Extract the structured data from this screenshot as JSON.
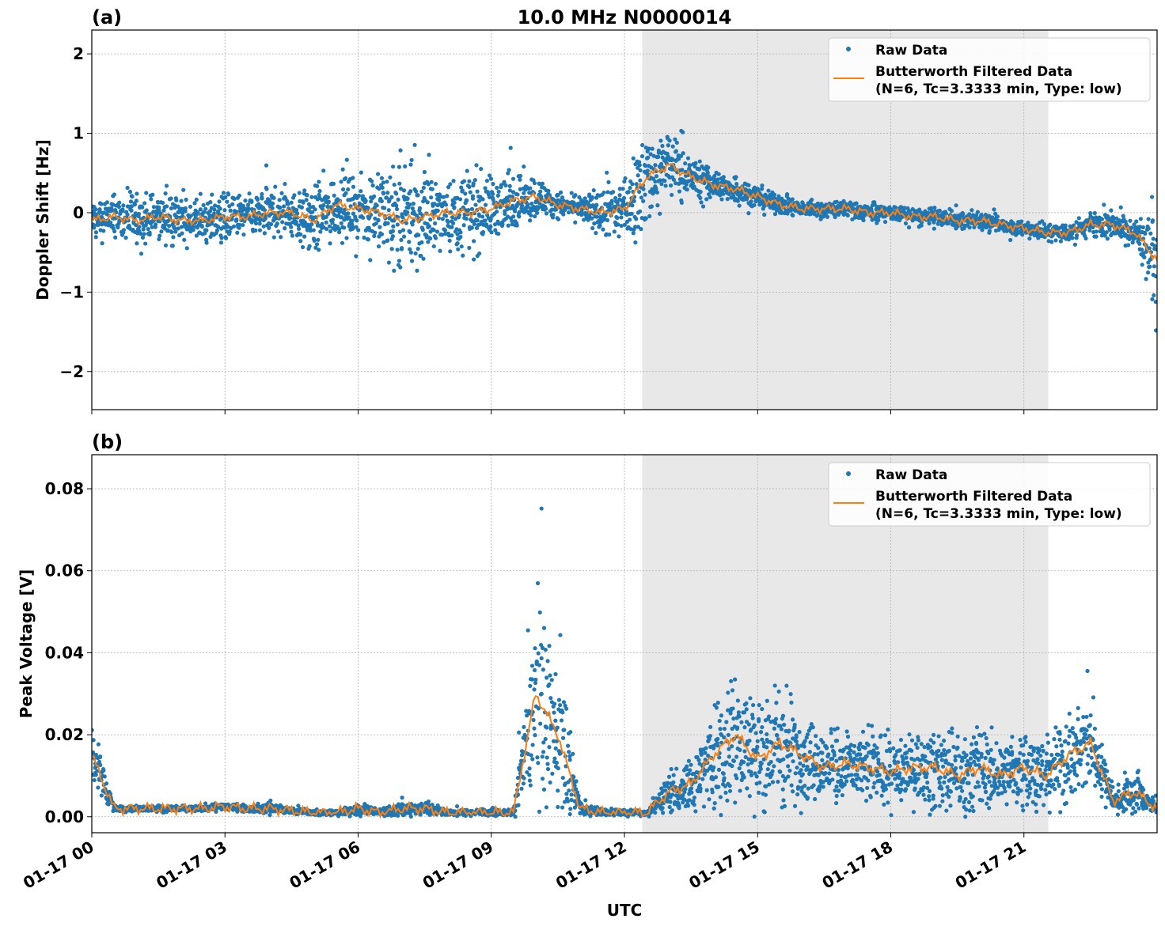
{
  "chart_data": [
    {
      "panel_label": "(a)",
      "title": "10.0 MHz N0000014",
      "type": "scatter",
      "ylabel": "Doppler Shift [Hz]",
      "xlabel": "",
      "xlim_hours": [
        0,
        24
      ],
      "ylim": [
        -2.48,
        2.3
      ],
      "yticks": [
        2,
        1,
        0,
        -1,
        -2
      ],
      "ytick_labels": [
        "2",
        "1",
        "0",
        "−1",
        "−2"
      ],
      "grid": true,
      "shaded_interval_hours": [
        12.4,
        21.55
      ],
      "shade_color": "#e8e8e8",
      "legend_placement": "upper-right",
      "legend": [
        "Raw Data",
        "Butterworth Filtered Data\n(N=6, Tc=3.3333 min, Type: low)"
      ],
      "legend_lines": [
        "Raw Data",
        "Butterworth Filtered Data",
        "(N=6, Tc=3.3333 min, Type: low)"
      ],
      "series": [
        {
          "name": "Raw Data",
          "style": "points",
          "color": "#1f77b4",
          "x_hours_step": 0.5,
          "spread": [
            0.4,
            0.4,
            0.45,
            0.4,
            0.4,
            0.4,
            0.45,
            0.4,
            0.4,
            0.45,
            0.7,
            0.6,
            0.5,
            0.7,
            1.1,
            0.7,
            0.6,
            0.8,
            0.6,
            0.5,
            0.4,
            0.2,
            0.2,
            0.45,
            0.6,
            0.9,
            0.6,
            0.35,
            0.3,
            0.25,
            0.2,
            0.18,
            0.15,
            0.15,
            0.15,
            0.15,
            0.15,
            0.15,
            0.15,
            0.15,
            0.15,
            0.15,
            0.15,
            0.15,
            0.15,
            0.2,
            0.25,
            0.3,
            0.9
          ]
        },
        {
          "name": "Butterworth Filtered Data (N=6, Tc=3.3333 min, Type: low)",
          "style": "line",
          "color": "#ff7f0e",
          "x_hours_step": 0.5,
          "values": [
            -0.1,
            -0.05,
            -0.1,
            -0.05,
            -0.1,
            -0.1,
            -0.05,
            -0.05,
            0.0,
            0.0,
            -0.1,
            0.1,
            0.05,
            0.0,
            -0.1,
            -0.05,
            0.0,
            0.0,
            0.05,
            0.15,
            0.2,
            0.1,
            0.05,
            0.0,
            0.05,
            0.45,
            0.6,
            0.45,
            0.35,
            0.3,
            0.2,
            0.1,
            0.05,
            0.05,
            0.05,
            0.0,
            0.0,
            -0.05,
            -0.05,
            -0.1,
            -0.1,
            -0.15,
            -0.2,
            -0.25,
            -0.25,
            -0.15,
            -0.15,
            -0.25,
            -0.6
          ]
        }
      ]
    },
    {
      "panel_label": "(b)",
      "title": "",
      "type": "scatter",
      "ylabel": "Peak Voltage [V]",
      "xlabel": "UTC",
      "xlim_hours": [
        0,
        24
      ],
      "ylim": [
        -0.0039,
        0.0883
      ],
      "yticks": [
        0.08,
        0.06,
        0.04,
        0.02,
        0.0
      ],
      "ytick_labels": [
        "0.08",
        "0.06",
        "0.04",
        "0.02",
        "0.00"
      ],
      "xticks_hours": [
        0,
        3,
        6,
        9,
        12,
        15,
        18,
        21
      ],
      "xtick_labels": [
        "01-17 00",
        "01-17 03",
        "01-17 06",
        "01-17 09",
        "01-17 12",
        "01-17 15",
        "01-17 18",
        "01-17 21"
      ],
      "grid": true,
      "shaded_interval_hours": [
        12.4,
        21.55
      ],
      "shade_color": "#e8e8e8",
      "legend_placement": "upper-right",
      "legend_lines": [
        "Raw Data",
        "Butterworth Filtered Data",
        "(N=6, Tc=3.3333 min, Type: low)"
      ],
      "series": [
        {
          "name": "Raw Data",
          "style": "points",
          "color": "#1f77b4",
          "x_hours_step": 0.5,
          "spread": [
            0.012,
            0.001,
            0.001,
            0.001,
            0.001,
            0.001,
            0.0015,
            0.001,
            0.002,
            0.001,
            0.001,
            0.001,
            0.002,
            0.001,
            0.003,
            0.002,
            0.001,
            0.001,
            0.001,
            0.001,
            0.035,
            0.03,
            0.002,
            0.001,
            0.001,
            0.001,
            0.008,
            0.01,
            0.018,
            0.025,
            0.018,
            0.022,
            0.016,
            0.012,
            0.012,
            0.012,
            0.011,
            0.012,
            0.014,
            0.012,
            0.015,
            0.012,
            0.014,
            0.012,
            0.016,
            0.015,
            0.005,
            0.007,
            0.002
          ]
        },
        {
          "name": "Butterworth Filtered Data (N=6, Tc=3.3333 min, Type: low)",
          "style": "line",
          "color": "#ff7f0e",
          "x_hours_step": 0.5,
          "values": [
            0.015,
            0.002,
            0.002,
            0.002,
            0.002,
            0.002,
            0.0025,
            0.002,
            0.002,
            0.0015,
            0.001,
            0.001,
            0.002,
            0.001,
            0.002,
            0.002,
            0.001,
            0.001,
            0.001,
            0.001,
            0.03,
            0.02,
            0.002,
            0.001,
            0.001,
            0.001,
            0.006,
            0.008,
            0.015,
            0.02,
            0.014,
            0.018,
            0.015,
            0.012,
            0.013,
            0.012,
            0.011,
            0.012,
            0.012,
            0.01,
            0.012,
            0.01,
            0.012,
            0.01,
            0.015,
            0.018,
            0.004,
            0.006,
            0.002
          ]
        }
      ]
    }
  ]
}
